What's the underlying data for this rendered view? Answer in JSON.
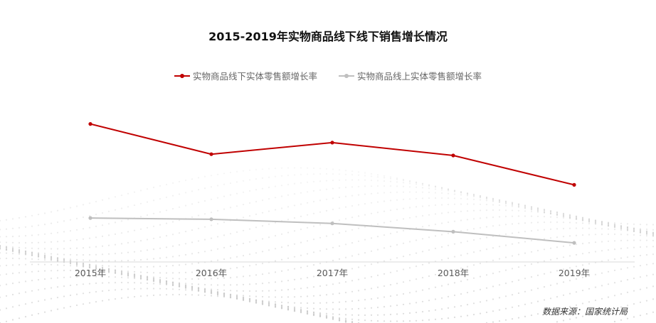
{
  "title": "2015-2019年实物商品线下线下销售增长情况",
  "source": "数据来源：国家统计局",
  "colors": {
    "offline": "#c00000",
    "online": "#bfbfbf",
    "axis": "#d9d9d9",
    "tick": "#595959"
  },
  "chart_data": {
    "type": "line",
    "title": "2015-2019年实物商品线下线下销售增长情况",
    "categories": [
      "2015年",
      "2016年",
      "2017年",
      "2018年",
      "2019年"
    ],
    "series": [
      {
        "name": "实物商品线下实体零售额增长率",
        "values": [
          33.3,
          26.0,
          28.8,
          25.7,
          18.6
        ],
        "color": "#c00000"
      },
      {
        "name": "实物商品线上实体零售额增长率",
        "values": [
          10.6,
          10.3,
          9.3,
          7.3,
          4.6
        ],
        "color": "#bfbfbf"
      }
    ],
    "ylim": [
      0,
      43
    ],
    "grid": false,
    "legend": "top-center",
    "xlabel": "",
    "ylabel": ""
  }
}
